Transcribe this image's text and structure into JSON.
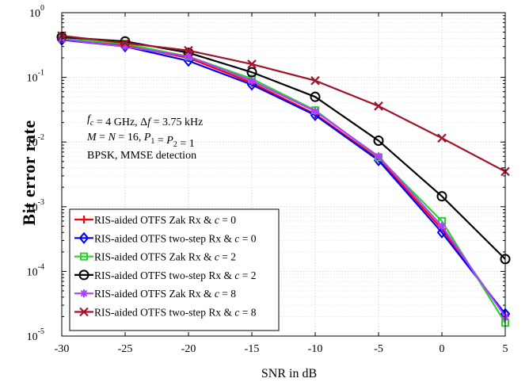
{
  "chart_data": {
    "type": "line",
    "xlabel": "SNR in dB",
    "ylabel": "Bit error rate",
    "x_scale": "linear",
    "y_scale": "log",
    "xlim": [
      -30,
      5
    ],
    "ylim": [
      1e-05,
      1
    ],
    "x_ticks": [
      -30,
      -25,
      -20,
      -15,
      -10,
      -5,
      0,
      5
    ],
    "x_tick_labels": [
      "-30",
      "-25",
      "-20",
      "-15",
      "-10",
      "-5",
      "0",
      "5"
    ],
    "y_ticks": [
      {
        "value": 1,
        "mantissa": "10",
        "exponent": "0"
      },
      {
        "value": 0.1,
        "mantissa": "10",
        "exponent": "-1"
      },
      {
        "value": 0.01,
        "mantissa": "10",
        "exponent": "-2"
      },
      {
        "value": 0.001,
        "mantissa": "10",
        "exponent": "-3"
      },
      {
        "value": 0.0001,
        "mantissa": "10",
        "exponent": "-4"
      },
      {
        "value": 1e-05,
        "mantissa": "10",
        "exponent": "-5"
      }
    ],
    "grid": true,
    "minor_grid": true,
    "legend_position": "bottom-left",
    "annotation": {
      "lines": [
        [
          {
            "t": "f",
            "i": true
          },
          {
            "t": "c",
            "i": true,
            "sub": true
          },
          {
            "t": " = 4 GHz, Δ"
          },
          {
            "t": "f",
            "i": true
          },
          {
            "t": " = 3.75 kHz"
          }
        ],
        [
          {
            "t": "M",
            "i": true
          },
          {
            "t": " = "
          },
          {
            "t": "N",
            "i": true
          },
          {
            "t": " = 16, "
          },
          {
            "t": "P",
            "i": true
          },
          {
            "t": "1",
            "sub": true
          },
          {
            "t": " = "
          },
          {
            "t": "P",
            "i": true
          },
          {
            "t": "2",
            "sub": true
          },
          {
            "t": " = 1"
          }
        ],
        [
          {
            "t": "BPSK, MMSE detection"
          }
        ]
      ]
    },
    "x": [
      -30,
      -25,
      -20,
      -15,
      -10,
      -5,
      0,
      5
    ],
    "series": [
      {
        "name": "RIS-aided OTFS Zak Rx & c = 0",
        "label_parts": [
          {
            "t": "RIS-aided OTFS Zak Rx & "
          },
          {
            "t": "c",
            "i": true
          },
          {
            "t": " = 0"
          }
        ],
        "color": "#ff0000",
        "marker": "plus",
        "values": [
          0.4,
          0.31,
          0.2,
          0.082,
          0.027,
          0.0055,
          0.00045,
          2.1e-05
        ]
      },
      {
        "name": "RIS-aided OTFS two-step Rx & c = 0",
        "label_parts": [
          {
            "t": "RIS-aided OTFS two-step Rx & "
          },
          {
            "t": "c",
            "i": true
          },
          {
            "t": " = 0"
          }
        ],
        "color": "#0000ff",
        "marker": "diamond",
        "values": [
          0.38,
          0.3,
          0.18,
          0.077,
          0.026,
          0.0052,
          0.0004,
          2.2e-05
        ]
      },
      {
        "name": "RIS-aided OTFS Zak Rx & c = 2",
        "label_parts": [
          {
            "t": "RIS-aided OTFS Zak Rx & "
          },
          {
            "t": "c",
            "i": true
          },
          {
            "t": " = 2"
          }
        ],
        "color": "#33cc33",
        "marker": "square",
        "values": [
          0.4,
          0.33,
          0.21,
          0.095,
          0.031,
          0.0058,
          0.0006,
          1.6e-05
        ]
      },
      {
        "name": "RIS-aided OTFS two-step Rx & c = 2",
        "label_parts": [
          {
            "t": "RIS-aided OTFS two-step Rx & "
          },
          {
            "t": "c",
            "i": true
          },
          {
            "t": " = 2"
          }
        ],
        "color": "#000000",
        "marker": "circle",
        "values": [
          0.42,
          0.36,
          0.24,
          0.12,
          0.05,
          0.0105,
          0.00145,
          0.000155
        ]
      },
      {
        "name": "RIS-aided OTFS Zak Rx & c = 8",
        "label_parts": [
          {
            "t": "RIS-aided OTFS Zak Rx & "
          },
          {
            "t": "c",
            "i": true
          },
          {
            "t": " = 8"
          }
        ],
        "color": "#b040ff",
        "marker": "asterisk",
        "values": [
          0.39,
          0.3,
          0.21,
          0.088,
          0.03,
          0.006,
          0.0005,
          2e-05
        ]
      },
      {
        "name": "RIS-aided OTFS two-step Rx & c = 8",
        "label_parts": [
          {
            "t": "RIS-aided OTFS two-step Rx & "
          },
          {
            "t": "c",
            "i": true
          },
          {
            "t": " = 8"
          }
        ],
        "color": "#a0152b",
        "marker": "x",
        "values": [
          0.44,
          0.34,
          0.26,
          0.16,
          0.089,
          0.036,
          0.0115,
          0.0035
        ]
      }
    ]
  }
}
